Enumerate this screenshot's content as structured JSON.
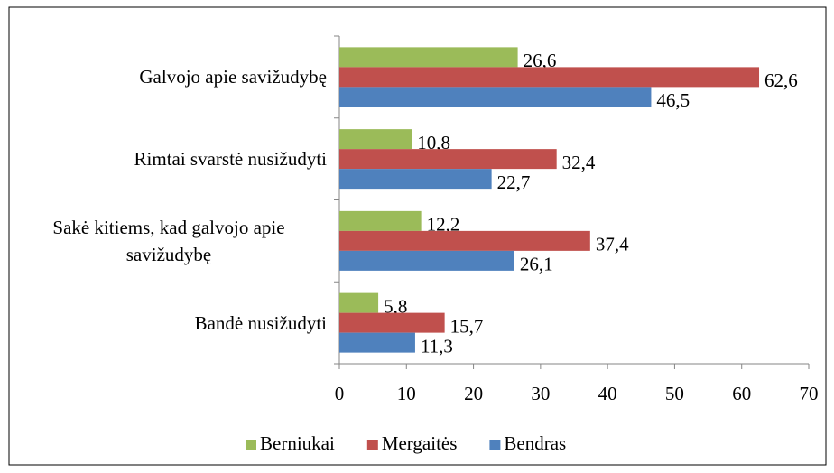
{
  "chart_data": {
    "type": "bar",
    "orientation": "horizontal",
    "categories": [
      "Galvojo apie savižudybę",
      "Rimtai svarstė nusižudyti",
      "Sakė kitiems, kad galvojo apie savižudybę",
      "Bandė nusižudyti"
    ],
    "series": [
      {
        "name": "Berniukai",
        "color": "#9bbb59",
        "values": [
          26.6,
          10.8,
          12.2,
          5.8
        ],
        "value_labels": [
          "26,6",
          "10,8",
          "12,2",
          "5,8"
        ]
      },
      {
        "name": "Mergaitės",
        "color": "#c0504d",
        "values": [
          62.6,
          32.4,
          37.4,
          15.7
        ],
        "value_labels": [
          "62,6",
          "32,4",
          "37,4",
          "15,7"
        ]
      },
      {
        "name": "Bendras",
        "color": "#4f81bd",
        "values": [
          46.5,
          22.7,
          26.1,
          11.3
        ],
        "value_labels": [
          "46,5",
          "22,7",
          "26,1",
          "11,3"
        ]
      }
    ],
    "xlim": [
      0,
      70
    ],
    "xticks": [
      0,
      10,
      20,
      30,
      40,
      50,
      60,
      70
    ],
    "legend": "bottom"
  }
}
